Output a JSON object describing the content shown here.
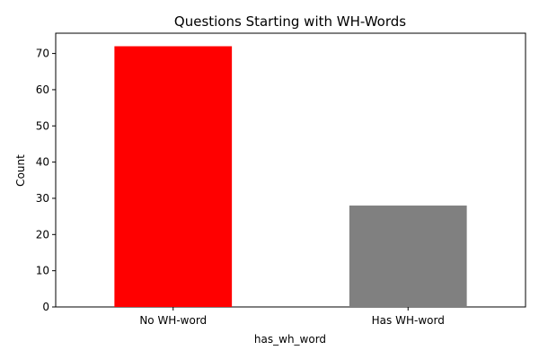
{
  "chart_data": {
    "type": "bar",
    "title": "Questions Starting with WH-Words",
    "xlabel": "has_wh_word",
    "ylabel": "Count",
    "categories": [
      "No WH-word",
      "Has WH-word"
    ],
    "values": [
      72,
      28
    ],
    "colors": [
      "#ff0000",
      "#808080"
    ],
    "ylim": [
      0,
      75.6
    ],
    "yticks": [
      0,
      10,
      20,
      30,
      40,
      50,
      60,
      70
    ],
    "grid": false,
    "legend": "none"
  }
}
